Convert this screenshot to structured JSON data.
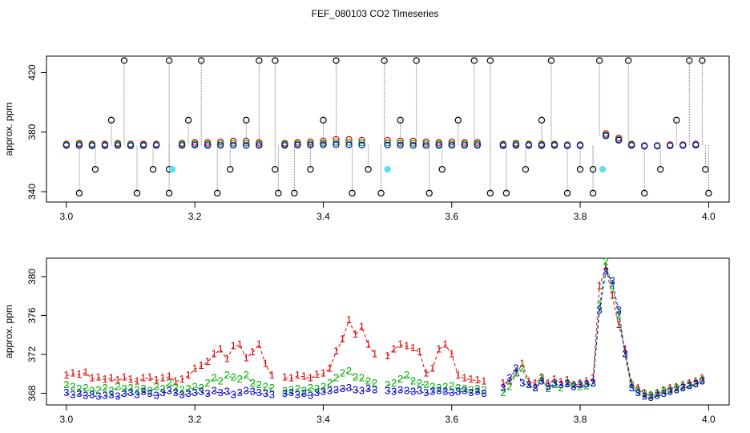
{
  "title": "FEF_080103  CO2 Timeseries",
  "chart_data": [
    {
      "type": "scatter",
      "ylabel": "approx. ppm",
      "xlim": [
        2.969,
        4.032
      ],
      "ylim": [
        333,
        431
      ],
      "xticks": [
        {
          "value": 3,
          "label": "3.0"
        },
        3.2,
        3.4,
        3.6,
        3.8,
        {
          "value": 4,
          "label": "4.0"
        }
      ],
      "yticks": [
        340,
        380,
        420
      ],
      "x": [
        3,
        3.02,
        3.04,
        3.06,
        3.08,
        3.1,
        3.12,
        3.14,
        3.16,
        3.18,
        3.2,
        3.22,
        3.24,
        3.26,
        3.28,
        3.3,
        3.32,
        3.34,
        3.36,
        3.38,
        3.4,
        3.42,
        3.44,
        3.46,
        3.48,
        3.5,
        3.52,
        3.54,
        3.56,
        3.58,
        3.6,
        3.62,
        3.64,
        3.66,
        3.68,
        3.7,
        3.72,
        3.74,
        3.76,
        3.78,
        3.8,
        3.82,
        3.84,
        3.86,
        3.88,
        3.9,
        3.92,
        3.94,
        3.96,
        3.98
      ],
      "series": [
        {
          "color": "#e00000",
          "values": [
            372,
            372.5,
            372,
            372,
            372.5,
            372,
            372,
            372,
            null,
            372.5,
            373,
            373,
            373.5,
            374,
            374,
            373,
            null,
            372.5,
            373,
            373.5,
            374,
            375,
            375,
            374.5,
            null,
            374.5,
            374,
            374,
            373.5,
            373,
            373.5,
            373,
            373,
            null,
            372,
            372.5,
            372,
            372,
            372,
            371.5,
            371.5,
            null,
            379,
            376,
            372,
            371,
            371,
            371.5,
            371.5,
            372
          ]
        },
        {
          "color": "#00b000",
          "values": [
            371.5,
            371.8,
            371.5,
            371.4,
            371.8,
            371.5,
            371.4,
            371.5,
            null,
            371.8,
            372,
            372,
            372.3,
            372.5,
            372.5,
            372,
            null,
            371.8,
            372,
            372.3,
            372.5,
            373,
            373,
            372.8,
            null,
            372.8,
            372.5,
            372.5,
            372.3,
            372,
            372.2,
            372,
            372,
            null,
            371.5,
            371.8,
            371.5,
            371.5,
            371.5,
            371.2,
            371.2,
            null,
            378,
            375,
            371.5,
            370.8,
            370.8,
            371,
            371.2,
            371.5
          ]
        },
        {
          "color": "#0000cc",
          "values": [
            371,
            371,
            370.8,
            370.9,
            371,
            370.8,
            370.9,
            371,
            null,
            371,
            371.2,
            371,
            371.1,
            371.2,
            371,
            371,
            null,
            371,
            371.2,
            371.3,
            371.5,
            371.6,
            371.4,
            371.3,
            null,
            371.3,
            371.2,
            371.1,
            371,
            371,
            371.1,
            371,
            371,
            null,
            370.9,
            371,
            371,
            370.9,
            371,
            370.8,
            370.9,
            null,
            377.5,
            374.5,
            371,
            370.5,
            370.6,
            370.8,
            371,
            371.2
          ]
        },
        {
          "color": "#000000",
          "stems": true,
          "x": [
            3.02,
            3.045,
            3.07,
            3.09,
            3.11,
            3.135,
            3.16,
            3.16,
            3.16,
            3.19,
            3.21,
            3.235,
            3.255,
            3.28,
            3.3,
            3.325,
            3.325,
            3.33,
            3.355,
            3.38,
            3.4,
            3.42,
            3.445,
            3.47,
            3.49,
            3.495,
            3.52,
            3.545,
            3.565,
            3.585,
            3.61,
            3.635,
            3.66,
            3.66,
            3.685,
            3.715,
            3.74,
            3.755,
            3.78,
            3.8,
            3.82,
            3.82,
            3.83,
            3.875,
            3.9,
            3.925,
            3.95,
            3.97,
            3.99,
            3.995,
            4
          ],
          "values": [
            339,
            355,
            388,
            428,
            339,
            355,
            428,
            339,
            355,
            388,
            428,
            339,
            355,
            388,
            428,
            428,
            355,
            339,
            339,
            355,
            388,
            428,
            339,
            355,
            339,
            428,
            388,
            428,
            339,
            355,
            388,
            428,
            428,
            339,
            339,
            355,
            388,
            428,
            339,
            355,
            339,
            355,
            428,
            428,
            339,
            355,
            388,
            428,
            428,
            355,
            339
          ]
        },
        {
          "color": "#5fe0e8",
          "filled": true,
          "x": [
            3.165,
            3.5,
            3.835
          ],
          "values": [
            355,
            355,
            355
          ]
        }
      ]
    },
    {
      "type": "line",
      "ylabel": "approx. ppm",
      "xlim": [
        2.969,
        4.032
      ],
      "ylim": [
        366.8,
        381.9
      ],
      "xticks": [
        {
          "value": 3,
          "label": "3.0"
        },
        3.2,
        3.4,
        3.6,
        3.8,
        {
          "value": 4,
          "label": "4.0"
        }
      ],
      "yticks": [
        368,
        372,
        376,
        380
      ],
      "x": [
        3,
        3.01,
        3.02,
        3.03,
        3.04,
        3.05,
        3.06,
        3.07,
        3.08,
        3.09,
        3.1,
        3.11,
        3.12,
        3.13,
        3.14,
        3.15,
        3.16,
        3.17,
        3.18,
        3.19,
        3.2,
        3.21,
        3.22,
        3.23,
        3.24,
        3.25,
        3.26,
        3.27,
        3.28,
        3.29,
        3.3,
        3.31,
        3.32,
        3.33,
        3.34,
        3.35,
        3.36,
        3.37,
        3.38,
        3.39,
        3.4,
        3.41,
        3.42,
        3.43,
        3.44,
        3.45,
        3.46,
        3.47,
        3.48,
        3.49,
        3.5,
        3.51,
        3.52,
        3.53,
        3.54,
        3.55,
        3.56,
        3.57,
        3.58,
        3.59,
        3.6,
        3.61,
        3.62,
        3.63,
        3.64,
        3.65,
        3.66,
        3.67,
        3.68,
        3.69,
        3.7,
        3.71,
        3.72,
        3.73,
        3.74,
        3.75,
        3.76,
        3.77,
        3.78,
        3.79,
        3.8,
        3.81,
        3.82,
        3.83,
        3.84,
        3.85,
        3.86,
        3.87,
        3.88,
        3.89,
        3.9,
        3.91,
        3.92,
        3.93,
        3.94,
        3.95,
        3.96,
        3.97,
        3.98,
        3.99
      ],
      "series": [
        {
          "color": "#e00000",
          "symbol": "1",
          "values": [
            369.8,
            370.0,
            369.9,
            370.1,
            369.5,
            369.6,
            369.4,
            369.5,
            369.3,
            369.6,
            369.4,
            369.2,
            369.5,
            369.6,
            369.3,
            369.5,
            369.7,
            369.2,
            369.4,
            369.8,
            370.5,
            370.8,
            371.2,
            372.0,
            372.5,
            371.5,
            372.8,
            373.0,
            371.6,
            372.2,
            373.0,
            371.0,
            369.8,
            null,
            369.6,
            369.5,
            369.8,
            369.7,
            369.5,
            369.9,
            370.0,
            370.5,
            372.3,
            373.5,
            375.5,
            374.0,
            374.8,
            373.0,
            372.0,
            null,
            371.8,
            372.5,
            373.0,
            372.8,
            372.6,
            372.2,
            370.0,
            370.5,
            372.5,
            373.0,
            372.0,
            369.8,
            369.5,
            369.4,
            369.3,
            369.2,
            null,
            null,
            369.0,
            369.2,
            370.0,
            371.0,
            369.2,
            369.0,
            369.6,
            369.0,
            369.4,
            369.1,
            369.3,
            368.8,
            369.0,
            369.2,
            369.5,
            379.0,
            381.0,
            378.0,
            375.0,
            372.5,
            369.0,
            368.5,
            368.0,
            367.8,
            368.0,
            368.3,
            368.5,
            368.6,
            368.8,
            369.0,
            369.2,
            369.5
          ]
        },
        {
          "color": "#00b000",
          "symbol": "2",
          "values": [
            368.8,
            368.6,
            368.4,
            368.5,
            368.2,
            368.3,
            368.5,
            368.2,
            368.6,
            368.4,
            368.5,
            368.3,
            368.4,
            368.2,
            368.6,
            368.4,
            369.0,
            368.5,
            368.3,
            368.4,
            368.6,
            368.5,
            369.0,
            369.5,
            369.2,
            369.8,
            369.6,
            369.4,
            369.8,
            369.0,
            368.8,
            368.6,
            368.5,
            null,
            368.2,
            368.3,
            368.4,
            368.2,
            368.5,
            368.4,
            368.6,
            369.0,
            369.5,
            370.0,
            370.2,
            369.6,
            369.5,
            369.2,
            369.0,
            null,
            368.8,
            369.0,
            369.4,
            369.8,
            369.2,
            369.0,
            368.8,
            368.6,
            368.5,
            368.6,
            368.7,
            368.5,
            368.4,
            368.3,
            368.4,
            368.3,
            null,
            null,
            368.0,
            368.6,
            370.0,
            370.5,
            368.8,
            368.5,
            369.5,
            368.4,
            368.8,
            368.5,
            369.0,
            368.8,
            368.6,
            368.7,
            369.0,
            377.0,
            381.5,
            379.0,
            376.0,
            372.0,
            368.8,
            368.3,
            367.9,
            367.7,
            367.9,
            368.2,
            368.3,
            368.5,
            368.6,
            368.8,
            369.0,
            369.3
          ]
        },
        {
          "color": "#0000cc",
          "symbol": "3",
          "values": [
            368.0,
            367.8,
            367.9,
            367.7,
            367.8,
            367.6,
            367.7,
            367.8,
            367.6,
            367.9,
            368.0,
            367.8,
            368.1,
            367.9,
            367.7,
            368.0,
            368.2,
            368.0,
            367.8,
            367.9,
            368.0,
            368.1,
            367.9,
            368.2,
            368.0,
            368.1,
            367.8,
            368.0,
            368.2,
            368.1,
            368.0,
            367.9,
            367.8,
            null,
            367.9,
            368.0,
            367.8,
            367.9,
            367.7,
            368.0,
            368.1,
            368.2,
            368.3,
            368.4,
            368.5,
            368.3,
            368.2,
            368.4,
            368.3,
            null,
            368.2,
            368.1,
            368.3,
            368.2,
            368.1,
            368.2,
            368.0,
            368.1,
            368.2,
            368.1,
            368.0,
            368.1,
            368.2,
            368.0,
            368.1,
            367.9,
            null,
            null,
            368.5,
            369.5,
            370.5,
            369.0,
            368.8,
            368.5,
            369.2,
            368.6,
            369.0,
            368.8,
            368.9,
            368.6,
            368.8,
            368.9,
            369.0,
            376.5,
            380.5,
            379.5,
            376.5,
            372.0,
            368.5,
            368.0,
            367.6,
            367.5,
            367.7,
            367.9,
            368.1,
            368.3,
            368.5,
            368.7,
            368.9,
            369.2
          ]
        }
      ]
    }
  ]
}
